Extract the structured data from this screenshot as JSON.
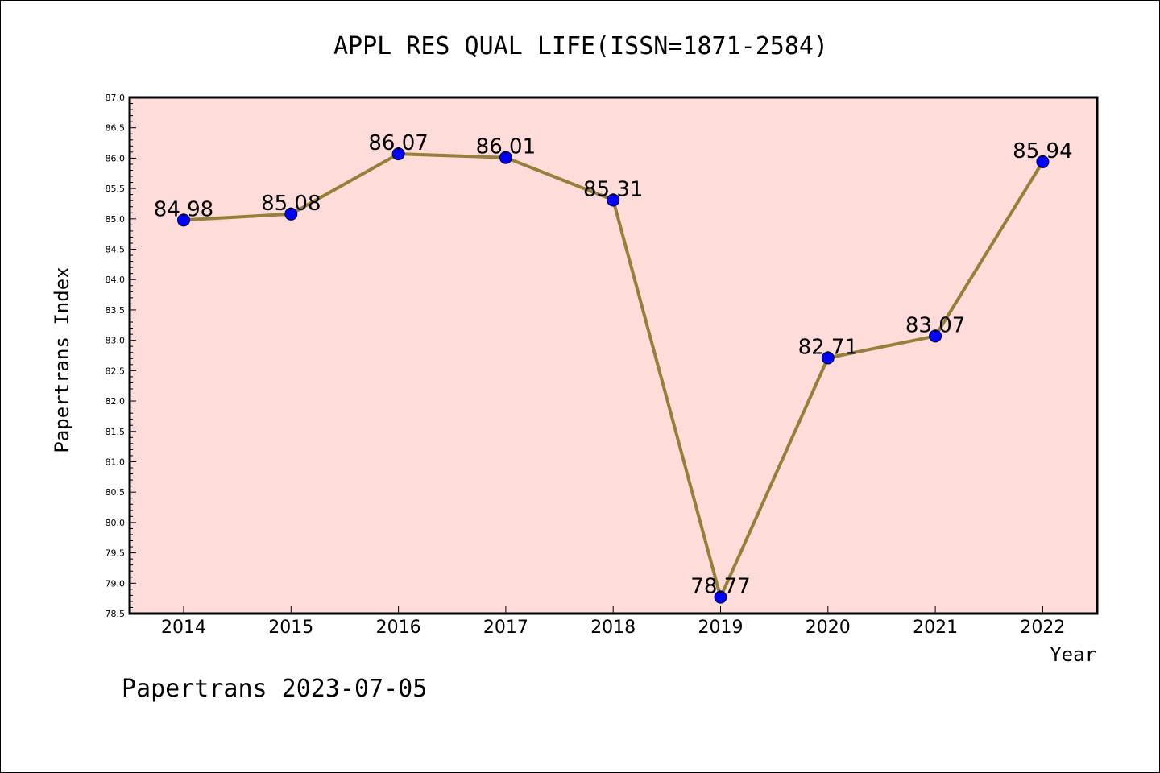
{
  "footer": "Papertrans 2023-07-05",
  "chart_data": {
    "type": "line",
    "title": "APPL RES QUAL LIFE(ISSN=1871-2584)",
    "xlabel": "Year",
    "ylabel": "Papertrans Index",
    "categories": [
      "2014",
      "2015",
      "2016",
      "2017",
      "2018",
      "2019",
      "2020",
      "2021",
      "2022"
    ],
    "values": [
      84.98,
      85.08,
      86.07,
      86.01,
      85.31,
      78.77,
      82.71,
      83.07,
      85.94
    ],
    "data_labels": [
      "84.98",
      "85.08",
      "86.07",
      "86.01",
      "85.31",
      "78.77",
      "82.71",
      "83.07",
      "85.94"
    ],
    "ylim": [
      78.5,
      87.0
    ],
    "yticks": [
      "78.5",
      "79.0",
      "79.5",
      "80.0",
      "80.5",
      "81.0",
      "81.5",
      "82.0",
      "82.5",
      "83.0",
      "83.5",
      "84.0",
      "84.5",
      "85.0",
      "85.5",
      "86.0",
      "86.5",
      "87.0"
    ],
    "grid": false,
    "colors": {
      "plot_background": "#fddcda",
      "line": "#948039",
      "marker": "#0000ff"
    }
  }
}
